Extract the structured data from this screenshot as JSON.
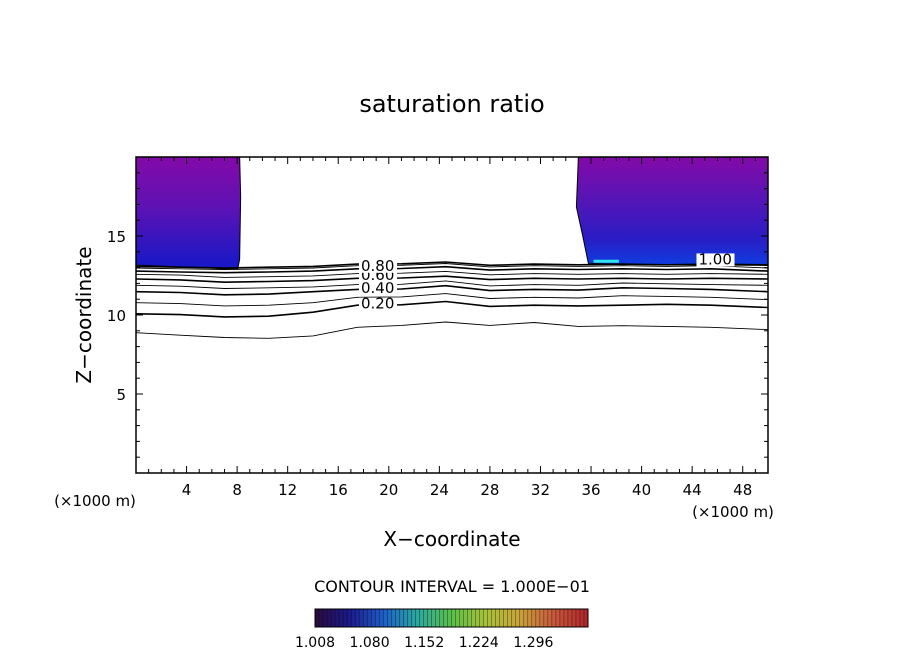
{
  "chart_data": {
    "type": "contour",
    "title": "saturation ratio",
    "xlabel": "X−coordinate",
    "ylabel": "Z−coordinate",
    "x_unit_label": "(×1000 m)",
    "y_unit_label": "(×1000 m)",
    "xlim": [
      0,
      50
    ],
    "ylim": [
      0,
      20
    ],
    "x_ticks": [
      4,
      8,
      12,
      16,
      20,
      24,
      28,
      32,
      36,
      40,
      44,
      48
    ],
    "y_ticks": [
      5,
      10,
      15
    ],
    "contour_interval_text": "CONTOUR INTERVAL = 1.000E−01",
    "contour_level_labels": [
      {
        "text": "0.20",
        "x": 17.8,
        "z": 10.4
      },
      {
        "text": "0.40",
        "x": 17.8,
        "z": 11.4
      },
      {
        "text": "0.60",
        "x": 17.8,
        "z": 12.2
      },
      {
        "text": "0.80",
        "x": 17.8,
        "z": 12.8
      },
      {
        "text": "1.00",
        "x": 44.5,
        "z": 13.2
      }
    ],
    "colorbar": {
      "min": 1.008,
      "max": 1.368,
      "tick_labels": [
        "1.008",
        "1.080",
        "1.152",
        "1.224",
        "1.296"
      ],
      "colors": [
        "#2b0a3d",
        "#1c1a8c",
        "#1e5ec8",
        "#2aa8a0",
        "#5bbf4a",
        "#a7c23a",
        "#c9a43a",
        "#c8583c",
        "#b0242a"
      ]
    },
    "filled_regions": [
      {
        "name": "left-supersaturated-region",
        "x_range": [
          0,
          8.2
        ],
        "z_range": [
          12.9,
          20
        ]
      },
      {
        "name": "right-supersaturated-region",
        "x_range": [
          35,
          50
        ],
        "z_range": [
          13.2,
          20
        ]
      }
    ],
    "region_colors": {
      "top": "#8409a8",
      "bottom": "#1418c8",
      "highlight": "#2ee6ee"
    },
    "contour_lines": [
      {
        "level": 0.1,
        "z": [
          8.9,
          8.7,
          8.6,
          8.5,
          8.7,
          9.2,
          9.4,
          9.5,
          9.4,
          9.5,
          9.3,
          9.3,
          9.3,
          9.2,
          9.1
        ]
      },
      {
        "level": 0.2,
        "z": [
          10.1,
          10.0,
          9.9,
          9.9,
          10.2,
          10.6,
          10.7,
          10.8,
          10.6,
          10.6,
          10.6,
          10.6,
          10.7,
          10.6,
          10.5
        ]
      },
      {
        "level": 0.3,
        "z": [
          10.8,
          10.7,
          10.6,
          10.6,
          10.8,
          11.1,
          11.2,
          11.3,
          11.1,
          11.1,
          11.1,
          11.2,
          11.2,
          11.1,
          11.0
        ]
      },
      {
        "level": 0.4,
        "z": [
          11.5,
          11.4,
          11.3,
          11.3,
          11.5,
          11.6,
          11.7,
          11.8,
          11.6,
          11.6,
          11.6,
          11.7,
          11.7,
          11.6,
          11.5
        ]
      },
      {
        "level": 0.5,
        "z": [
          11.9,
          11.8,
          11.7,
          11.7,
          11.8,
          11.9,
          12.0,
          12.1,
          11.9,
          11.9,
          11.9,
          12.0,
          12.0,
          11.9,
          11.9
        ]
      },
      {
        "level": 0.6,
        "z": [
          12.3,
          12.2,
          12.1,
          12.1,
          12.2,
          12.3,
          12.4,
          12.4,
          12.3,
          12.3,
          12.3,
          12.3,
          12.3,
          12.3,
          12.3
        ]
      },
      {
        "level": 0.7,
        "z": [
          12.6,
          12.5,
          12.4,
          12.4,
          12.5,
          12.6,
          12.7,
          12.7,
          12.6,
          12.6,
          12.6,
          12.6,
          12.6,
          12.6,
          12.6
        ]
      },
      {
        "level": 0.8,
        "z": [
          12.8,
          12.7,
          12.7,
          12.7,
          12.8,
          12.9,
          13.0,
          13.0,
          12.9,
          12.9,
          12.9,
          12.9,
          12.9,
          12.9,
          12.8
        ]
      },
      {
        "level": 0.9,
        "z": [
          13.0,
          12.9,
          12.9,
          12.9,
          13.0,
          13.1,
          13.2,
          13.2,
          13.1,
          13.1,
          13.1,
          13.1,
          13.1,
          13.1,
          13.0
        ]
      },
      {
        "level": 1.0,
        "z": [
          13.1,
          13.0,
          13.0,
          13.0,
          13.1,
          13.2,
          13.3,
          13.3,
          13.2,
          13.2,
          13.2,
          13.2,
          13.2,
          13.2,
          13.2
        ]
      }
    ],
    "contour_x": [
      0,
      3.5,
      7,
      10.5,
      14,
      17.5,
      21,
      24.5,
      28,
      31.5,
      35,
      38.5,
      42,
      45.5,
      50
    ]
  }
}
